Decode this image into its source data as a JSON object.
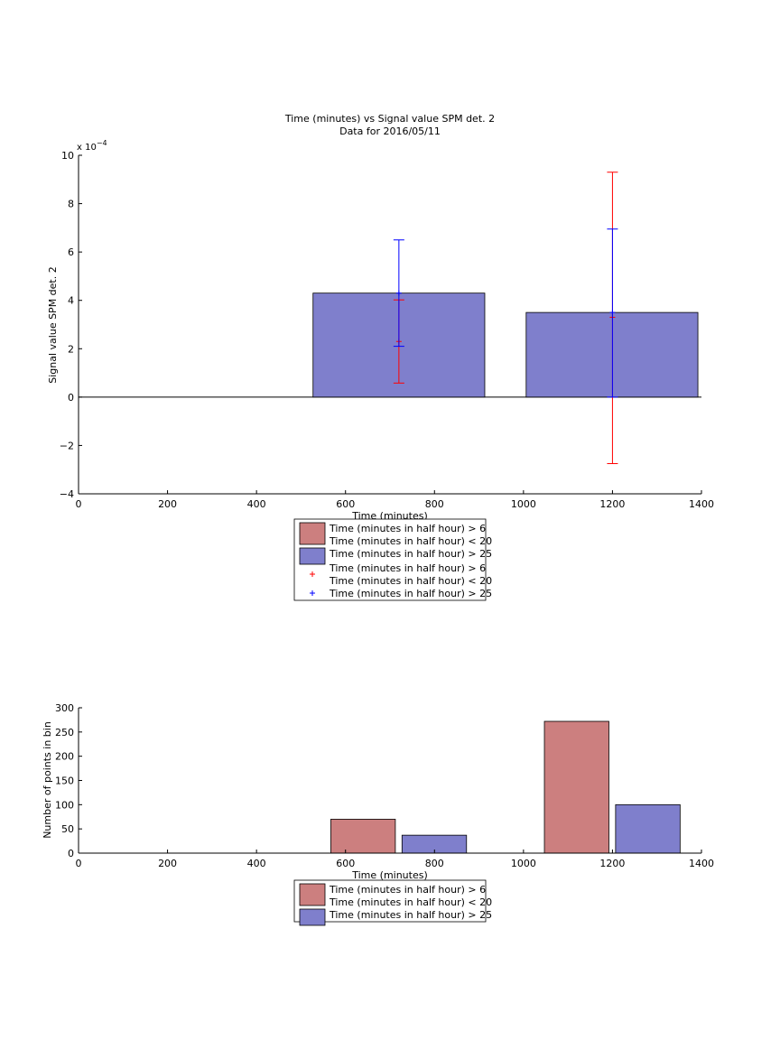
{
  "chart_data": [
    {
      "type": "bar",
      "title": "Time (minutes) vs Signal value SPM det. 2",
      "subtitle": "Data for 2016/05/11",
      "xlabel": "Time (minutes)",
      "ylabel": "Signal value SPM det. 2",
      "y_exponent_label": "x 10",
      "y_exponent_power": "−4",
      "xlim": [
        0,
        1400
      ],
      "ylim": [
        -4,
        10
      ],
      "y_scale_factor": 0.0001,
      "xticks": [
        "0",
        "200",
        "400",
        "600",
        "800",
        "1000",
        "1200",
        "1400"
      ],
      "yticks": [
        "−4",
        "−2",
        "0",
        "2",
        "4",
        "6",
        "8",
        "10"
      ],
      "colors": {
        "red": "#cc7f7f",
        "blue": "#7f7fcc",
        "red_err": "#ff0000",
        "blue_err": "#0000ff"
      },
      "bars": [
        {
          "series": 1,
          "x_start": 527,
          "x_end": 913,
          "value": 4.3
        },
        {
          "series": 1,
          "x_start": 1006,
          "x_end": 1392,
          "value": 3.5
        }
      ],
      "errorbars": [
        {
          "series": 0,
          "x": 720,
          "center": 2.3,
          "low": 0.58,
          "high": 4.02
        },
        {
          "series": 1,
          "x": 720,
          "center": 4.3,
          "low": 2.1,
          "high": 6.5
        },
        {
          "series": 0,
          "x": 1200,
          "center": 3.3,
          "low": -2.75,
          "high": 9.3
        },
        {
          "series": 1,
          "x": 1200,
          "center": 3.5,
          "low": 0.0,
          "high": 6.95
        }
      ],
      "legend": {
        "position": "below",
        "entries": [
          {
            "kind": "patch",
            "series": 0,
            "lines": [
              "Time (minutes in half hour) > 6",
              "Time (minutes in half hour) < 20"
            ]
          },
          {
            "kind": "patch",
            "series": 1,
            "lines": [
              "Time (minutes in half hour) > 25"
            ]
          },
          {
            "kind": "marker",
            "series": 0,
            "lines": [
              "Time (minutes in half hour) > 6",
              "Time (minutes in half hour) < 20"
            ]
          },
          {
            "kind": "marker",
            "series": 1,
            "lines": [
              "Time (minutes in half hour) > 25"
            ]
          }
        ]
      }
    },
    {
      "type": "bar",
      "xlabel": "Time (minutes)",
      "ylabel": "Number of points in bin",
      "xlim": [
        0,
        1400
      ],
      "ylim": [
        0,
        300
      ],
      "xticks": [
        "0",
        "200",
        "400",
        "600",
        "800",
        "1000",
        "1200",
        "1400"
      ],
      "yticks": [
        "0",
        "50",
        "100",
        "150",
        "200",
        "250",
        "300"
      ],
      "bars": [
        {
          "series": 0,
          "x_start": 567,
          "x_end": 712,
          "value": 70
        },
        {
          "series": 1,
          "x_start": 727,
          "x_end": 872,
          "value": 37
        },
        {
          "series": 0,
          "x_start": 1047,
          "x_end": 1192,
          "value": 272
        },
        {
          "series": 1,
          "x_start": 1207,
          "x_end": 1352,
          "value": 100
        }
      ],
      "legend": {
        "position": "below",
        "entries": [
          {
            "kind": "patch",
            "series": 0,
            "lines": [
              "Time (minutes in half hour) > 6",
              "Time (minutes in half hour) < 20"
            ]
          },
          {
            "kind": "patch",
            "series": 1,
            "lines": [
              "Time (minutes in half hour) > 25"
            ]
          }
        ]
      }
    }
  ]
}
